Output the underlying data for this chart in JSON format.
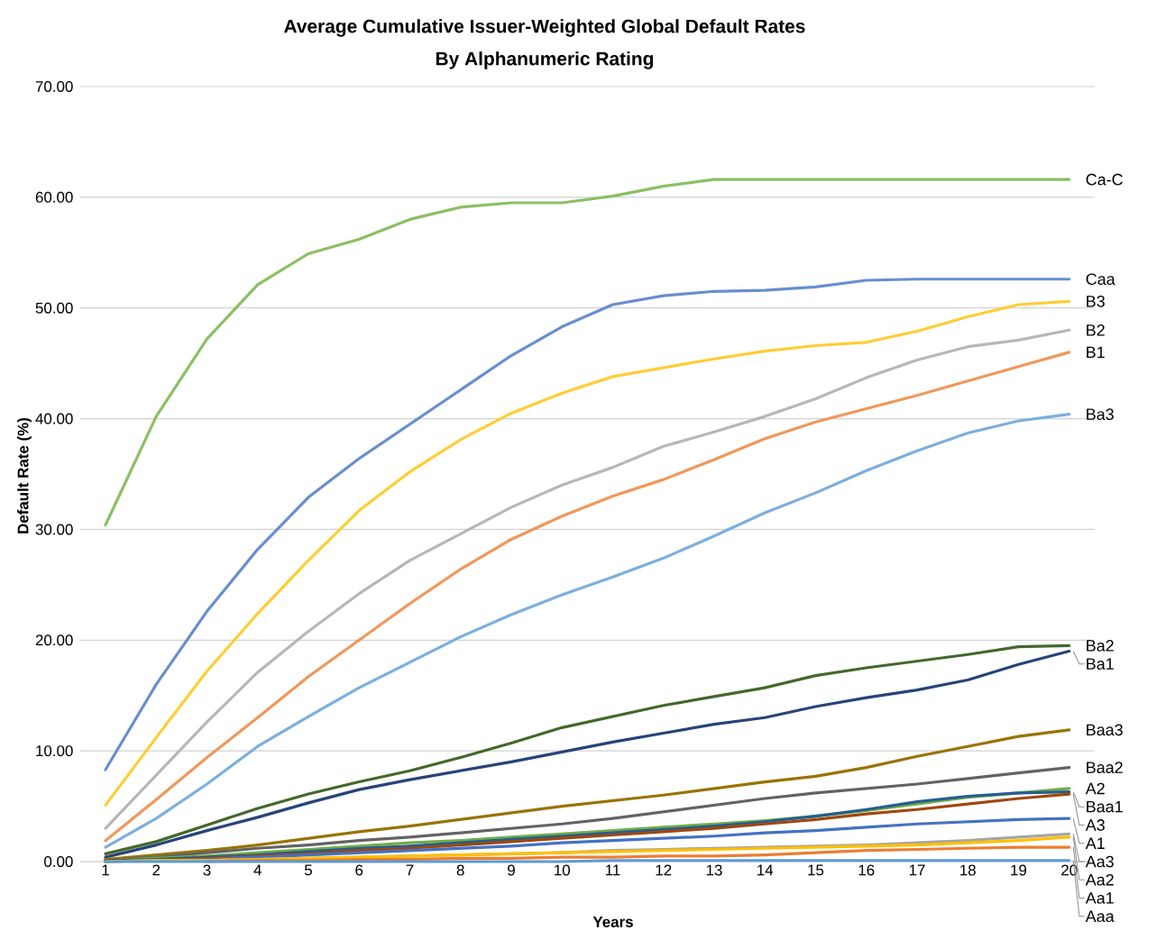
{
  "chart_data": {
    "type": "line",
    "title": "Average Cumulative Issuer-Weighted Global Default Rates",
    "subtitle": "By Alphanumeric Rating",
    "xlabel": "Years",
    "ylabel": "Default Rate (%)",
    "categories": [
      "1",
      "2",
      "3",
      "4",
      "5",
      "6",
      "7",
      "8",
      "9",
      "10",
      "11",
      "12",
      "13",
      "14",
      "15",
      "16",
      "17",
      "18",
      "19",
      "20"
    ],
    "ylim": [
      0,
      70
    ],
    "yticks": [
      {
        "value": 0,
        "label": "0.00"
      },
      {
        "value": 10,
        "label": "10.00"
      },
      {
        "value": 20,
        "label": "20.00"
      },
      {
        "value": 30,
        "label": "30.00"
      },
      {
        "value": 40,
        "label": "40.00"
      },
      {
        "value": 50,
        "label": "50.00"
      },
      {
        "value": 60,
        "label": "60.00"
      },
      {
        "value": 70,
        "label": "70.00"
      }
    ],
    "grid": "y",
    "series": [
      {
        "name": "Ca-C",
        "color": "#8bbf63",
        "values": [
          30.4,
          40.2,
          47.2,
          52.1,
          54.9,
          56.2,
          58.0,
          59.1,
          59.5,
          59.5,
          60.1,
          61.0,
          61.6,
          61.6,
          61.6,
          61.6,
          61.6,
          61.6,
          61.6,
          61.6
        ]
      },
      {
        "name": "Caa",
        "color": "#698ed0",
        "values": [
          8.3,
          16.0,
          22.6,
          28.2,
          32.9,
          36.4,
          39.5,
          42.6,
          45.7,
          48.3,
          50.3,
          51.1,
          51.5,
          51.6,
          51.9,
          52.5,
          52.6,
          52.6,
          52.6,
          52.6
        ]
      },
      {
        "name": "B3",
        "color": "#ffcd33",
        "values": [
          5.1,
          11.2,
          17.2,
          22.4,
          27.2,
          31.7,
          35.2,
          38.1,
          40.5,
          42.3,
          43.8,
          44.6,
          45.4,
          46.1,
          46.6,
          46.9,
          47.9,
          49.2,
          50.3,
          50.6
        ]
      },
      {
        "name": "B2",
        "color": "#b7b7b7",
        "values": [
          3.0,
          7.8,
          12.6,
          17.1,
          20.8,
          24.2,
          27.2,
          29.6,
          32.0,
          34.0,
          35.6,
          37.5,
          38.8,
          40.2,
          41.8,
          43.7,
          45.3,
          46.5,
          47.1,
          48.0
        ]
      },
      {
        "name": "B1",
        "color": "#f1975a",
        "values": [
          1.9,
          5.6,
          9.4,
          13.0,
          16.7,
          20.0,
          23.3,
          26.4,
          29.1,
          31.2,
          33.0,
          34.5,
          36.3,
          38.2,
          39.7,
          40.9,
          42.1,
          43.4,
          44.7,
          46.0
        ]
      },
      {
        "name": "Ba3",
        "color": "#7cafdd",
        "values": [
          1.3,
          3.9,
          7.0,
          10.4,
          13.1,
          15.7,
          18.0,
          20.3,
          22.3,
          24.1,
          25.7,
          27.4,
          29.4,
          31.5,
          33.3,
          35.3,
          37.1,
          38.7,
          39.8,
          40.4
        ]
      },
      {
        "name": "Ba2",
        "color": "#43682b",
        "values": [
          0.7,
          1.8,
          3.3,
          4.8,
          6.1,
          7.2,
          8.2,
          9.4,
          10.7,
          12.1,
          13.1,
          14.1,
          14.9,
          15.7,
          16.8,
          17.5,
          18.1,
          18.7,
          19.4,
          19.5
        ]
      },
      {
        "name": "Ba1",
        "color": "#264478",
        "values": [
          0.4,
          1.5,
          2.8,
          4.0,
          5.3,
          6.5,
          7.4,
          8.2,
          9.0,
          9.9,
          10.8,
          11.6,
          12.4,
          13.0,
          14.0,
          14.8,
          15.5,
          16.4,
          17.8,
          19.0
        ]
      },
      {
        "name": "Baa3",
        "color": "#997300",
        "values": [
          0.2,
          0.6,
          1.0,
          1.5,
          2.1,
          2.7,
          3.2,
          3.8,
          4.4,
          5.0,
          5.5,
          6.0,
          6.6,
          7.2,
          7.7,
          8.5,
          9.5,
          10.4,
          11.3,
          11.9
        ]
      },
      {
        "name": "Baa2",
        "color": "#636363",
        "values": [
          0.1,
          0.4,
          0.8,
          1.2,
          1.5,
          1.9,
          2.2,
          2.6,
          3.0,
          3.4,
          3.9,
          4.5,
          5.1,
          5.7,
          6.2,
          6.6,
          7.0,
          7.5,
          8.0,
          8.5
        ]
      },
      {
        "name": "A2",
        "color": "#70ad47",
        "values": [
          0.1,
          0.3,
          0.5,
          0.8,
          1.1,
          1.4,
          1.7,
          1.9,
          2.2,
          2.5,
          2.8,
          3.1,
          3.4,
          3.7,
          4.1,
          4.6,
          5.2,
          5.8,
          6.2,
          6.6
        ]
      },
      {
        "name": "Baa1",
        "color": "#255e91",
        "values": [
          0.1,
          0.2,
          0.4,
          0.6,
          0.9,
          1.2,
          1.4,
          1.7,
          2.0,
          2.3,
          2.6,
          2.9,
          3.2,
          3.6,
          4.1,
          4.7,
          5.4,
          5.9,
          6.2,
          6.3
        ]
      },
      {
        "name": "A3",
        "color": "#9e480e",
        "values": [
          0.1,
          0.1,
          0.3,
          0.5,
          0.7,
          1.0,
          1.2,
          1.5,
          1.8,
          2.1,
          2.4,
          2.7,
          3.0,
          3.4,
          3.8,
          4.3,
          4.7,
          5.2,
          5.7,
          6.1
        ]
      },
      {
        "name": "A1",
        "color": "#4472c4",
        "values": [
          0.0,
          0.1,
          0.2,
          0.4,
          0.6,
          0.8,
          1.0,
          1.2,
          1.4,
          1.7,
          1.9,
          2.1,
          2.3,
          2.6,
          2.8,
          3.1,
          3.4,
          3.6,
          3.8,
          3.9
        ]
      },
      {
        "name": "Aa3",
        "color": "#a5a5a5",
        "values": [
          0.0,
          0.1,
          0.1,
          0.2,
          0.3,
          0.4,
          0.5,
          0.6,
          0.7,
          0.8,
          1.0,
          1.1,
          1.2,
          1.3,
          1.4,
          1.5,
          1.7,
          1.9,
          2.2,
          2.5
        ]
      },
      {
        "name": "Aa2",
        "color": "#ffc000",
        "values": [
          0.0,
          0.1,
          0.1,
          0.2,
          0.3,
          0.4,
          0.5,
          0.6,
          0.7,
          0.8,
          0.9,
          1.0,
          1.1,
          1.2,
          1.3,
          1.4,
          1.5,
          1.7,
          1.9,
          2.2
        ]
      },
      {
        "name": "Aa1",
        "color": "#ed7d31",
        "values": [
          null,
          null,
          0.0,
          0.1,
          0.1,
          0.2,
          0.2,
          0.3,
          0.3,
          0.4,
          0.4,
          0.5,
          0.5,
          0.6,
          0.8,
          1.0,
          1.1,
          1.2,
          1.3,
          1.3
        ]
      },
      {
        "name": "Aaa",
        "color": "#5b9bd5",
        "values": [
          0.0,
          0.0,
          0.0,
          0.0,
          0.0,
          0.0,
          0.0,
          0.0,
          0.0,
          0.0,
          0.1,
          0.1,
          0.1,
          0.1,
          0.1,
          0.1,
          0.1,
          0.1,
          0.1,
          0.1
        ]
      }
    ]
  }
}
